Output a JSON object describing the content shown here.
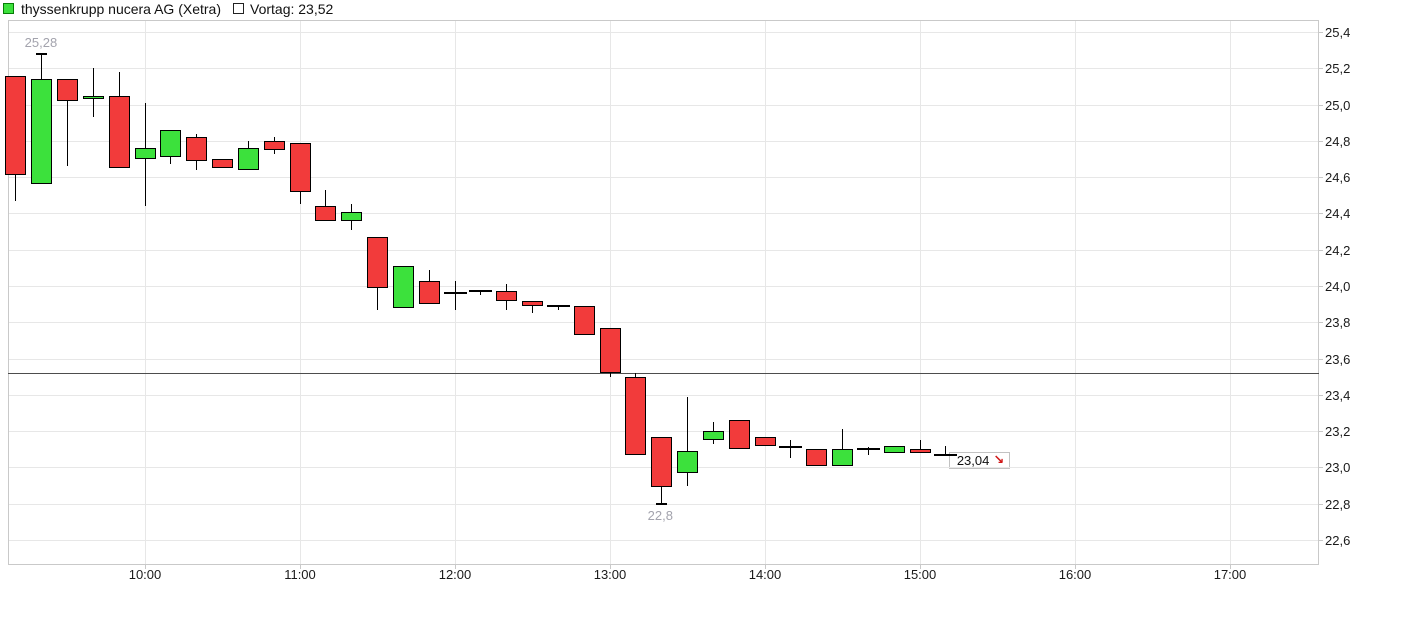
{
  "legend": {
    "series_label": "thyssenkrupp nucera AG (Xetra)",
    "series_color": "#3ce13c",
    "vortag_label": "Vortag: 23,52"
  },
  "y_axis": {
    "labels": [
      "25,4",
      "25,2",
      "25,0",
      "24,8",
      "24,6",
      "24,4",
      "24,2",
      "24,0",
      "23,8",
      "23,6",
      "23,4",
      "23,2",
      "23,0",
      "22,8",
      "22,6"
    ],
    "min": 22.6,
    "max": 25.4,
    "step": 0.2
  },
  "x_axis": {
    "labels": [
      "10:00",
      "11:00",
      "12:00",
      "13:00",
      "14:00",
      "15:00",
      "16:00",
      "17:00"
    ]
  },
  "annotations": {
    "session_high_label": "25,28",
    "session_low_label": "22,8",
    "last_price_label": "23,04",
    "last_price_arrow": "↘"
  },
  "chart_data": {
    "type": "candlestick",
    "title": "thyssenkrupp nucera AG (Xetra)",
    "interval_minutes": 10,
    "previous_close": 23.52,
    "session_high": 25.28,
    "session_low": 22.8,
    "last_price": 23.04,
    "up_color": "#3ce13c",
    "down_color": "#f23b3b",
    "grid": true,
    "legend_position": "top-left",
    "ylim": [
      22.6,
      25.4
    ],
    "candles": [
      {
        "time": "09:10",
        "o": 25.16,
        "h": 25.16,
        "l": 24.47,
        "c": 24.61
      },
      {
        "time": "09:20",
        "o": 24.56,
        "h": 25.28,
        "l": 24.56,
        "c": 25.14,
        "cap": "high"
      },
      {
        "time": "09:30",
        "o": 25.14,
        "h": 25.14,
        "l": 24.66,
        "c": 25.02
      },
      {
        "time": "09:40",
        "o": 25.03,
        "h": 25.2,
        "l": 24.93,
        "c": 25.05
      },
      {
        "time": "09:50",
        "o": 25.05,
        "h": 25.18,
        "l": 24.65,
        "c": 24.65
      },
      {
        "time": "10:00",
        "o": 24.7,
        "h": 25.01,
        "l": 24.44,
        "c": 24.76
      },
      {
        "time": "10:10",
        "o": 24.71,
        "h": 24.86,
        "l": 24.67,
        "c": 24.86
      },
      {
        "time": "10:20",
        "o": 24.82,
        "h": 24.84,
        "l": 24.64,
        "c": 24.69
      },
      {
        "time": "10:30",
        "o": 24.7,
        "h": 24.7,
        "l": 24.65,
        "c": 24.65
      },
      {
        "time": "10:40",
        "o": 24.64,
        "h": 24.8,
        "l": 24.64,
        "c": 24.76
      },
      {
        "time": "10:50",
        "o": 24.8,
        "h": 24.82,
        "l": 24.73,
        "c": 24.75
      },
      {
        "time": "11:00",
        "o": 24.79,
        "h": 24.79,
        "l": 24.45,
        "c": 24.52
      },
      {
        "time": "11:10",
        "o": 24.44,
        "h": 24.53,
        "l": 24.36,
        "c": 24.36
      },
      {
        "time": "11:20",
        "o": 24.36,
        "h": 24.45,
        "l": 24.31,
        "c": 24.41
      },
      {
        "time": "11:30",
        "o": 24.27,
        "h": 24.27,
        "l": 23.87,
        "c": 23.99
      },
      {
        "time": "11:40",
        "o": 23.88,
        "h": 24.11,
        "l": 23.88,
        "c": 24.11
      },
      {
        "time": "11:50",
        "o": 24.03,
        "h": 24.09,
        "l": 23.9,
        "c": 23.9
      },
      {
        "time": "12:00",
        "o": 23.96,
        "h": 24.03,
        "l": 23.87,
        "c": 23.96
      },
      {
        "time": "12:10",
        "o": 23.97,
        "h": 23.97,
        "l": 23.95,
        "c": 23.97
      },
      {
        "time": "12:20",
        "o": 23.97,
        "h": 24.01,
        "l": 23.87,
        "c": 23.92
      },
      {
        "time": "12:30",
        "o": 23.92,
        "h": 23.92,
        "l": 23.85,
        "c": 23.89
      },
      {
        "time": "12:40",
        "o": 23.89,
        "h": 23.89,
        "l": 23.87,
        "c": 23.89
      },
      {
        "time": "12:50",
        "o": 23.89,
        "h": 23.89,
        "l": 23.73,
        "c": 23.73
      },
      {
        "time": "13:00",
        "o": 23.77,
        "h": 23.77,
        "l": 23.5,
        "c": 23.52
      },
      {
        "time": "13:10",
        "o": 23.5,
        "h": 23.52,
        "l": 23.07,
        "c": 23.07
      },
      {
        "time": "13:20",
        "o": 23.17,
        "h": 23.17,
        "l": 22.8,
        "c": 22.89,
        "cap": "low"
      },
      {
        "time": "13:30",
        "o": 22.97,
        "h": 23.39,
        "l": 22.9,
        "c": 23.09
      },
      {
        "time": "13:40",
        "o": 23.15,
        "h": 23.25,
        "l": 23.13,
        "c": 23.2
      },
      {
        "time": "13:50",
        "o": 23.26,
        "h": 23.26,
        "l": 23.1,
        "c": 23.1
      },
      {
        "time": "14:00",
        "o": 23.17,
        "h": 23.17,
        "l": 23.12,
        "c": 23.12
      },
      {
        "time": "14:10",
        "o": 23.11,
        "h": 23.15,
        "l": 23.05,
        "c": 23.1
      },
      {
        "time": "14:20",
        "o": 23.1,
        "h": 23.1,
        "l": 23.01,
        "c": 23.01
      },
      {
        "time": "14:30",
        "o": 23.01,
        "h": 23.21,
        "l": 23.01,
        "c": 23.1
      },
      {
        "time": "14:40",
        "o": 23.1,
        "h": 23.11,
        "l": 23.07,
        "c": 23.11
      },
      {
        "time": "14:50",
        "o": 23.08,
        "h": 23.12,
        "l": 23.08,
        "c": 23.12
      },
      {
        "time": "15:00",
        "o": 23.1,
        "h": 23.15,
        "l": 23.08,
        "c": 23.08
      },
      {
        "time": "15:10",
        "o": 23.07,
        "h": 23.12,
        "l": 23.07,
        "c": 23.07
      }
    ]
  }
}
